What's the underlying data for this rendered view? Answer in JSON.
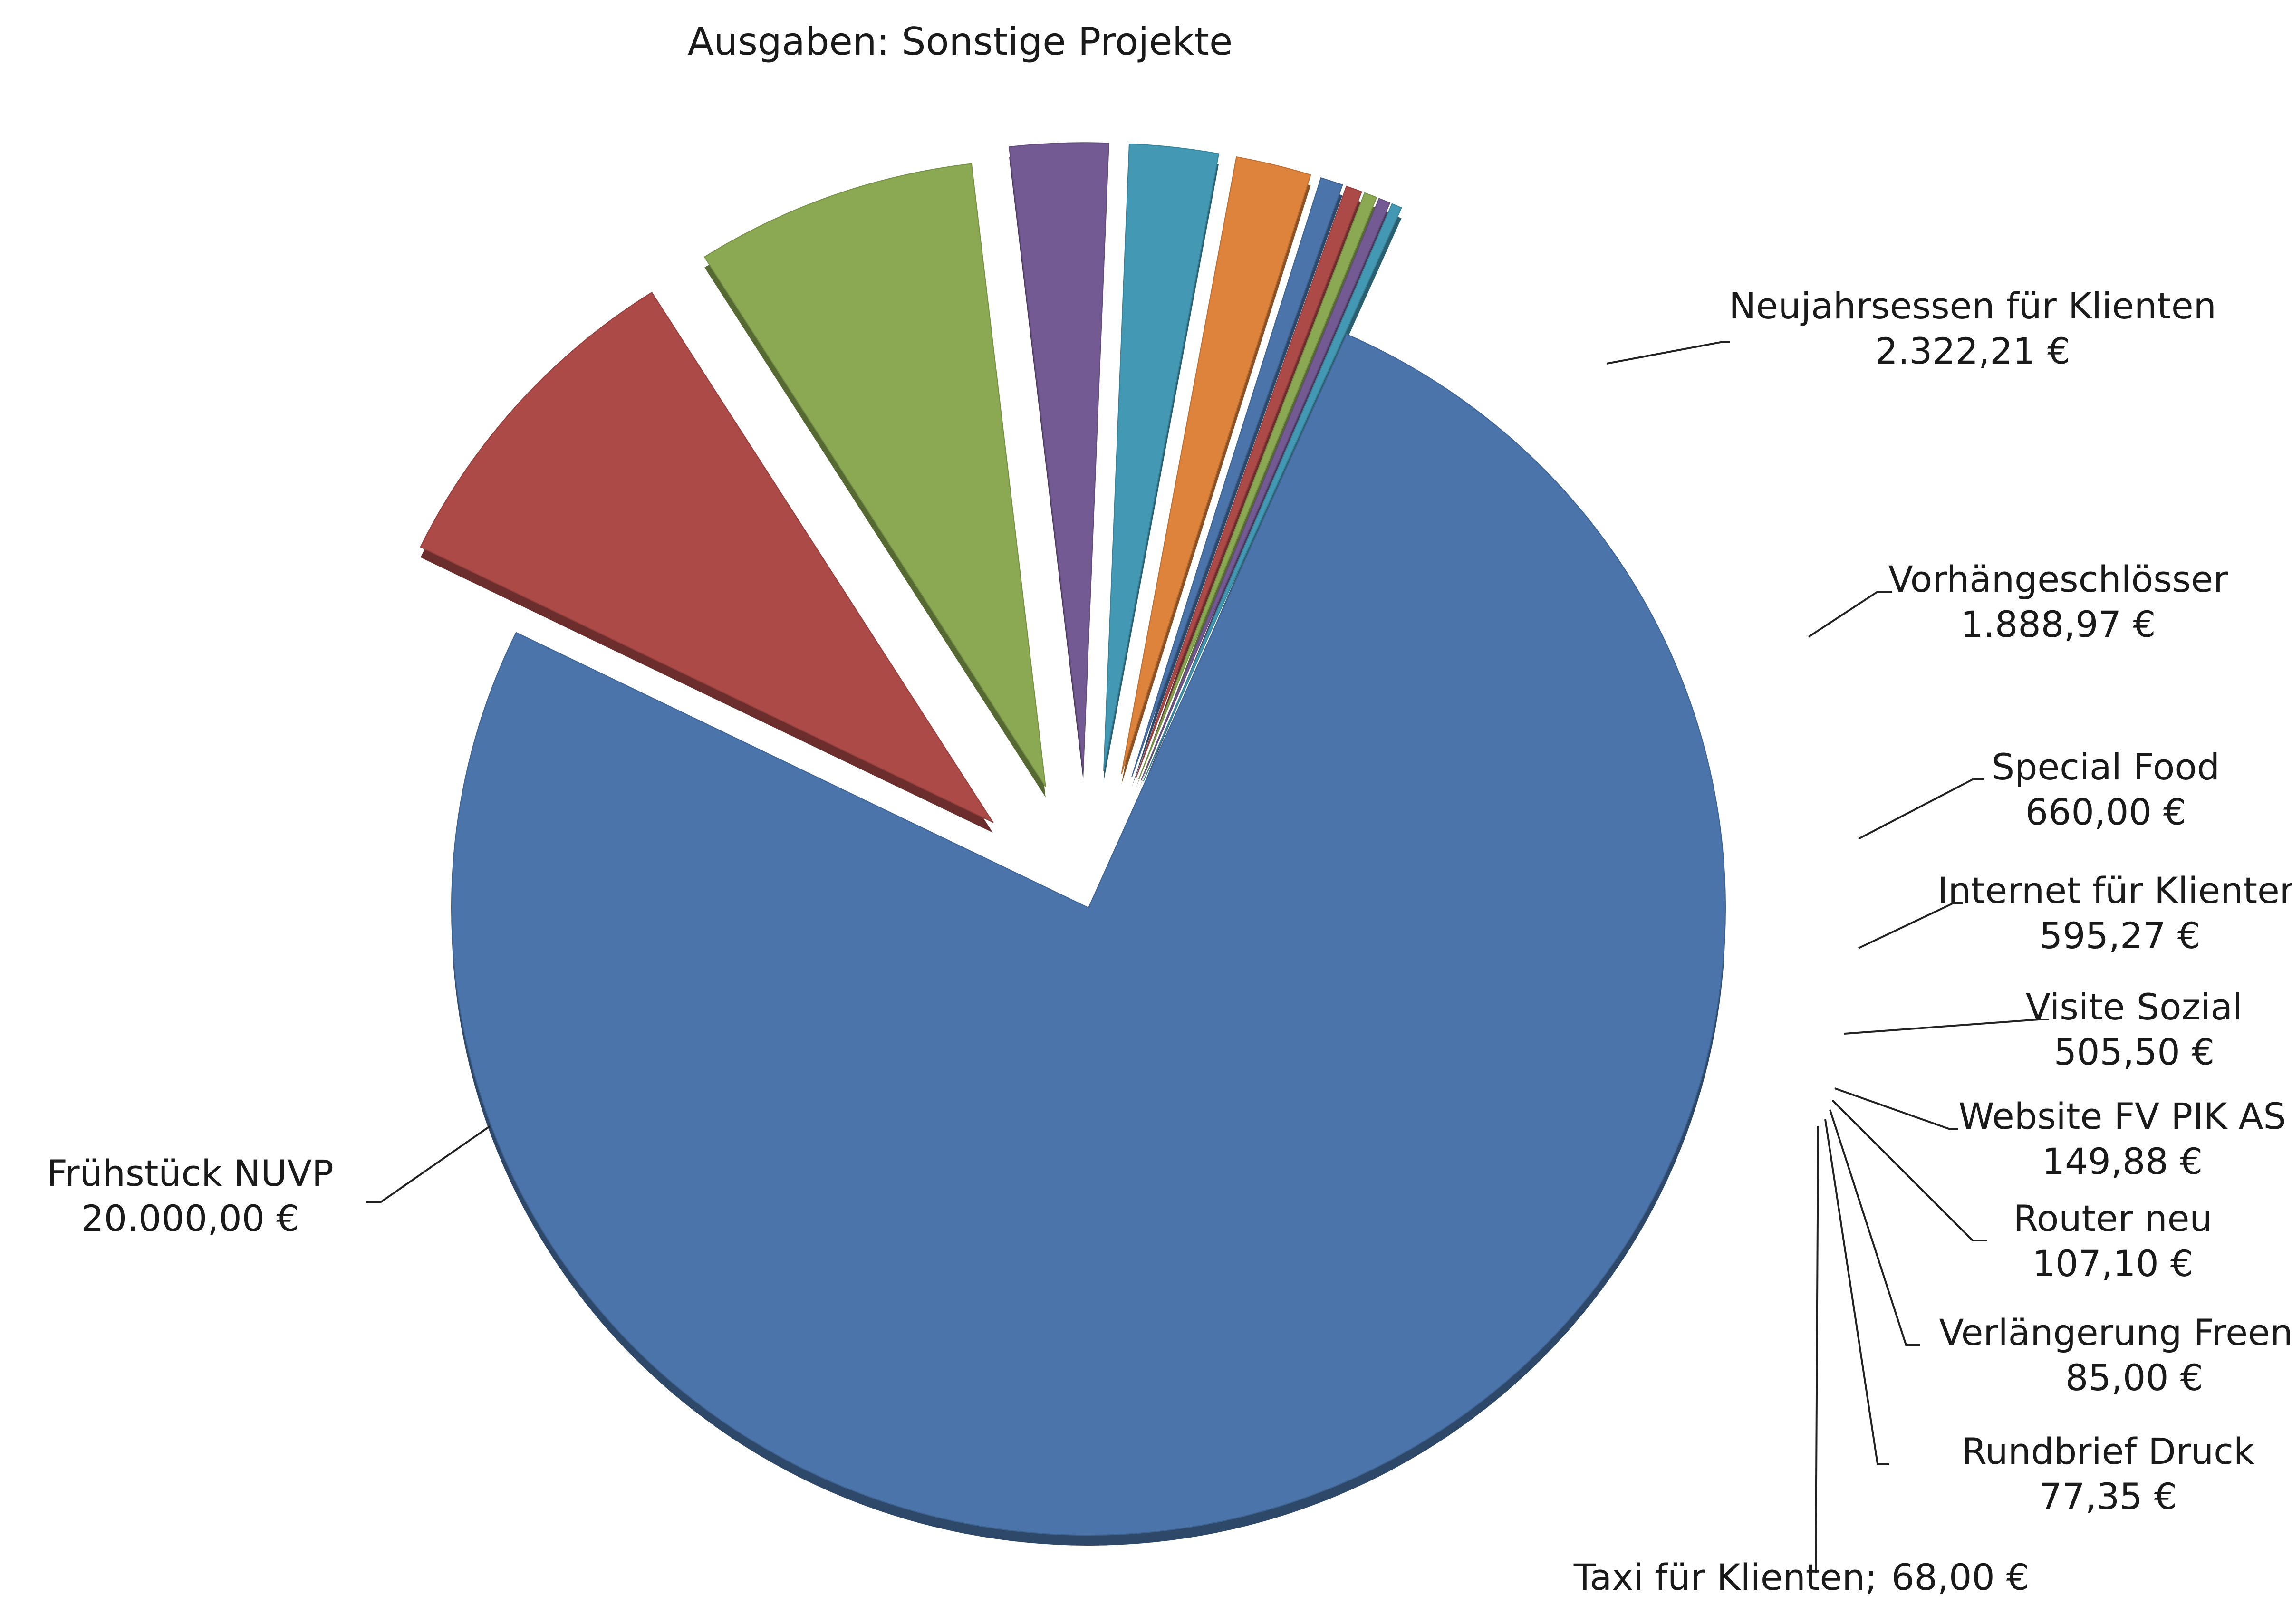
{
  "chart_data": {
    "type": "pie",
    "title": "Ausgaben: Sonstige Projekte",
    "series": [
      {
        "name": "Frühstück NUVP",
        "value": 20000.0,
        "value_label": "20.000,00 €",
        "color": "#4A74AA",
        "exploded": false
      },
      {
        "name": "Neujahrsessen für Klienten",
        "value": 2322.21,
        "value_label": "2.322,21 €",
        "color": "#AC4A48",
        "exploded": true
      },
      {
        "name": "Vorhängeschlösser",
        "value": 1888.97,
        "value_label": "1.888,97 €",
        "color": "#8AA952",
        "exploded": true
      },
      {
        "name": "Special Food",
        "value": 660.0,
        "value_label": "660,00 €",
        "color": "#735A92",
        "exploded": true
      },
      {
        "name": "Internet für Klienten",
        "value": 595.27,
        "value_label": "595,27 €",
        "color": "#4399B3",
        "exploded": true
      },
      {
        "name": "Visite Sozial",
        "value": 505.5,
        "value_label": "505,50 €",
        "color": "#DD833C",
        "exploded": true
      },
      {
        "name": "Website FV PIK AS",
        "value": 149.88,
        "value_label": "149,88 €",
        "color": "#4A74AA",
        "exploded": true
      },
      {
        "name": "Router neu",
        "value": 107.1,
        "value_label": "107,10 €",
        "color": "#AC4A48",
        "exploded": true
      },
      {
        "name": "Verlängerung Freenet",
        "value": 85.0,
        "value_label": "85,00 €",
        "color": "#8AA952",
        "exploded": true
      },
      {
        "name": "Rundbrief Druck",
        "value": 77.35,
        "value_label": "77,35 €",
        "color": "#735A92",
        "exploded": true
      },
      {
        "name": "Taxi für Klienten",
        "value": 68.0,
        "value_label": "68,00 €",
        "separator": ";",
        "color": "#4399B3",
        "exploded": true
      }
    ]
  }
}
